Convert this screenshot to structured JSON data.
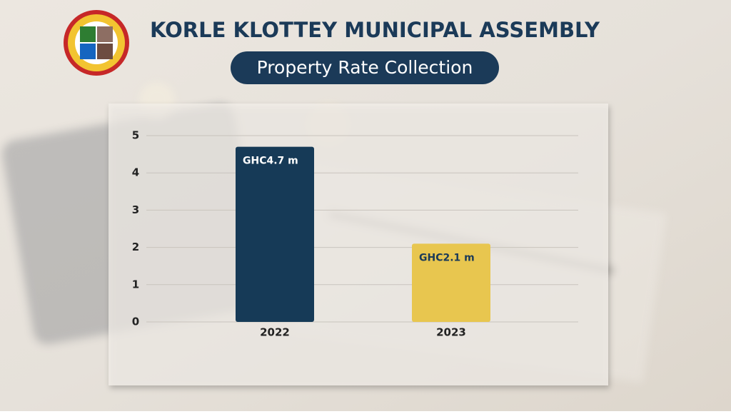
{
  "chart_data": {
    "type": "bar",
    "title": "KORLE KLOTTEY MUNICIPAL ASSEMBLY",
    "subtitle": "Property Rate Collection",
    "categories": [
      "2022",
      "2023"
    ],
    "values": [
      4.7,
      2.1
    ],
    "value_labels": [
      "GHC4.7 m",
      "GHC2.1 m"
    ],
    "colors": [
      "#163a57",
      "#e8c64f"
    ],
    "ylim": [
      0,
      5
    ],
    "yticks": [
      0,
      1,
      2,
      3,
      4,
      5
    ],
    "grid": true
  }
}
